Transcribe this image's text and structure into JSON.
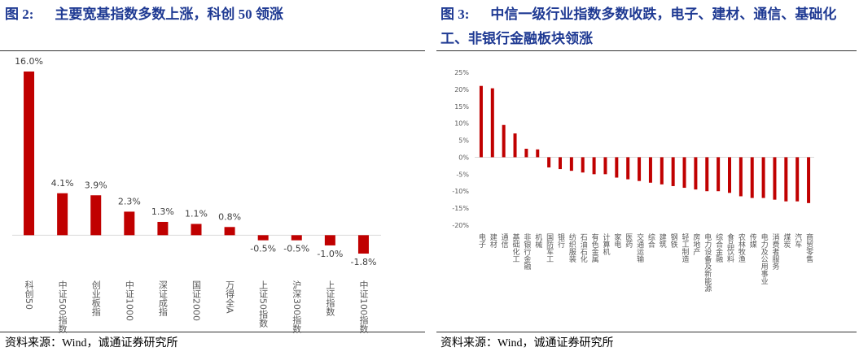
{
  "chart_data": [
    {
      "type": "bar",
      "figure_label": "图 2:",
      "title": "主要宽基指数多数上涨，科创 50 领涨",
      "source": "资料来源：Wind，诚通证券研究所",
      "categories": [
        "科创50",
        "中证500指数",
        "创业板指",
        "中证1000",
        "深证成指",
        "国证2000",
        "万得全A",
        "上证50指数",
        "沪深300指数",
        "上证指数",
        "中证100指数"
      ],
      "values": [
        16.0,
        4.1,
        3.9,
        2.3,
        1.3,
        1.1,
        0.8,
        -0.5,
        -0.5,
        -1.0,
        -1.8
      ],
      "value_labels": [
        "16.0%",
        "4.1%",
        "3.9%",
        "2.3%",
        "1.3%",
        "1.1%",
        "0.8%",
        "-0.5%",
        "-0.5%",
        "-1.0%",
        "-1.8%"
      ],
      "color": "#c00000"
    },
    {
      "type": "bar",
      "figure_label": "图 3:",
      "title": "中信一级行业指数多数收跌，电子、建材、通信、基础化工、非银行金融板块领涨",
      "source": "资料来源：Wind，诚通证券研究所",
      "categories": [
        "电子",
        "建材",
        "通信",
        "基础化工",
        "非银行金融",
        "机械",
        "国防军工",
        "银行",
        "纺织服装",
        "石油石化",
        "有色金属",
        "计算机",
        "家电",
        "医药",
        "交通运输",
        "综合",
        "建筑",
        "钢铁",
        "轻工制造",
        "房地产",
        "电力设备及新能源",
        "综合金融",
        "食品饮料",
        "农林牧渔",
        "传媒",
        "电力及公用事业",
        "消费者服务",
        "煤炭",
        "汽车",
        "商贸零售"
      ],
      "values": [
        21,
        20.3,
        9.5,
        7,
        2.5,
        2.3,
        -3,
        -3.5,
        -4,
        -4.5,
        -5,
        -5,
        -6,
        -6.5,
        -7,
        -7.5,
        -8,
        -8.5,
        -9,
        -9.5,
        -10,
        -10,
        -10.5,
        -11.5,
        -12,
        -12,
        -12.5,
        -13,
        -13,
        -13.5
      ],
      "color": "#c00000",
      "ylim": [
        -20,
        25
      ],
      "yticks": [
        {
          "value": 25,
          "label": "25%"
        },
        {
          "value": 20,
          "label": "20%"
        },
        {
          "value": 15,
          "label": "15%"
        },
        {
          "value": 10,
          "label": "10%"
        },
        {
          "value": 5,
          "label": "5%"
        },
        {
          "value": 0,
          "label": "0%"
        },
        {
          "value": -5,
          "label": "-5%"
        },
        {
          "value": -10,
          "label": "-10%"
        },
        {
          "value": -15,
          "label": "-15%"
        },
        {
          "value": -20,
          "label": "-20%"
        }
      ]
    }
  ]
}
